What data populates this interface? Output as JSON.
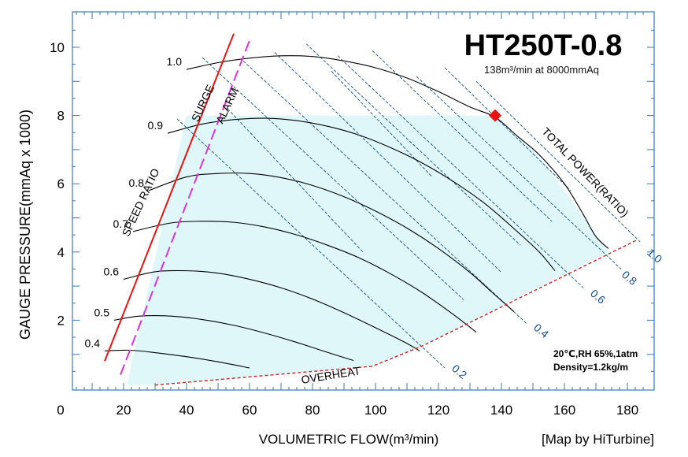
{
  "header": {
    "model": "HT250T-0.8",
    "rating": "138m³/min at 8000mmAq"
  },
  "credit": "[Map by HiTurbine]",
  "conditions": {
    "line1": "20℃,RH 65%,1atm",
    "line2": "Density=1.2kg/m"
  },
  "labels": {
    "surge": "SURGE",
    "alarm": "ALARM",
    "speed_ratio": "SPEED RATIO",
    "total_power": "TOTAL POWER(RATIO)",
    "overheat": "OVERHEAT"
  },
  "chart_data": {
    "type": "line",
    "xlabel": "VOLUMETRIC FLOW(m³/min)",
    "ylabel": "GAUGE PRESSURE(mmAq x 1000)",
    "xlim": [
      0,
      190
    ],
    "ylim": [
      0,
      11
    ],
    "xticks": [
      "0",
      "20",
      "40",
      "60",
      "80",
      "100",
      "120",
      "140",
      "160",
      "180"
    ],
    "xtick_values": [
      0,
      20,
      40,
      60,
      80,
      100,
      120,
      140,
      160,
      180
    ],
    "yticks": [
      "2",
      "4",
      "6",
      "8",
      "10"
    ],
    "ytick_values": [
      2,
      4,
      6,
      8,
      10
    ],
    "grid": false,
    "colors": {
      "speed_curve": "#000000",
      "surge": "#ee1111",
      "alarm": "#dd33dd",
      "power": "#1a4f8a",
      "overheat": "#cc2222",
      "region": "#dff7f8",
      "marker": "#ee1111"
    },
    "speed_curves": [
      {
        "name": "0.4",
        "points": [
          [
            14,
            1.1
          ],
          [
            22,
            1.12
          ],
          [
            30,
            1.05
          ],
          [
            40,
            0.93
          ],
          [
            50,
            0.78
          ],
          [
            60,
            0.6
          ]
        ]
      },
      {
        "name": "0.5",
        "points": [
          [
            17,
            2.0
          ],
          [
            25,
            2.12
          ],
          [
            35,
            2.12
          ],
          [
            45,
            2.02
          ],
          [
            55,
            1.85
          ],
          [
            65,
            1.62
          ],
          [
            75,
            1.35
          ],
          [
            85,
            1.05
          ],
          [
            93,
            0.82
          ]
        ]
      },
      {
        "name": "0.6",
        "points": [
          [
            20,
            3.2
          ],
          [
            30,
            3.42
          ],
          [
            40,
            3.45
          ],
          [
            50,
            3.38
          ],
          [
            60,
            3.2
          ],
          [
            70,
            2.95
          ],
          [
            80,
            2.62
          ],
          [
            90,
            2.22
          ],
          [
            100,
            1.78
          ],
          [
            110,
            1.32
          ],
          [
            114,
            1.1
          ]
        ]
      },
      {
        "name": "0.7",
        "points": [
          [
            23,
            4.6
          ],
          [
            35,
            4.85
          ],
          [
            45,
            4.9
          ],
          [
            55,
            4.87
          ],
          [
            65,
            4.73
          ],
          [
            75,
            4.5
          ],
          [
            85,
            4.19
          ],
          [
            95,
            3.82
          ],
          [
            105,
            3.35
          ],
          [
            115,
            2.8
          ],
          [
            125,
            2.15
          ],
          [
            132,
            1.65
          ]
        ]
      },
      {
        "name": "0.8",
        "points": [
          [
            28,
            5.8
          ],
          [
            40,
            6.2
          ],
          [
            50,
            6.3
          ],
          [
            60,
            6.3
          ],
          [
            70,
            6.18
          ],
          [
            80,
            5.95
          ],
          [
            90,
            5.62
          ],
          [
            100,
            5.2
          ],
          [
            110,
            4.7
          ],
          [
            120,
            4.1
          ],
          [
            130,
            3.4
          ],
          [
            137,
            2.82
          ],
          [
            144,
            2.25
          ]
        ]
      },
      {
        "name": "0.9",
        "points": [
          [
            34,
            7.48
          ],
          [
            45,
            7.75
          ],
          [
            55,
            7.88
          ],
          [
            65,
            7.92
          ],
          [
            75,
            7.85
          ],
          [
            85,
            7.68
          ],
          [
            95,
            7.42
          ],
          [
            105,
            7.05
          ],
          [
            115,
            6.6
          ],
          [
            125,
            6.05
          ],
          [
            135,
            5.4
          ],
          [
            145,
            4.6
          ],
          [
            152,
            4.0
          ],
          [
            157,
            3.45
          ]
        ]
      },
      {
        "name": "1.0",
        "points": [
          [
            40,
            9.35
          ],
          [
            50,
            9.55
          ],
          [
            60,
            9.68
          ],
          [
            70,
            9.75
          ],
          [
            80,
            9.73
          ],
          [
            90,
            9.6
          ],
          [
            100,
            9.4
          ],
          [
            110,
            9.1
          ],
          [
            120,
            8.7
          ],
          [
            130,
            8.25
          ],
          [
            138,
            7.95
          ],
          [
            145,
            7.4
          ],
          [
            152,
            6.85
          ],
          [
            160,
            6.0
          ],
          [
            166,
            5.1
          ],
          [
            170,
            4.45
          ],
          [
            174,
            4.1
          ]
        ]
      }
    ],
    "surge_line": [
      [
        14,
        0.8
      ],
      [
        55,
        10.4
      ]
    ],
    "alarm_line": [
      [
        19,
        0.4
      ],
      [
        60,
        10.2
      ]
    ],
    "overheat_line": [
      [
        30,
        0.1
      ],
      [
        99,
        0.65
      ],
      [
        115,
        1.25
      ],
      [
        183,
        4.35
      ]
    ],
    "region": [
      [
        21,
        0.1
      ],
      [
        31,
        0.1
      ],
      [
        99,
        0.65
      ],
      [
        115,
        1.25
      ],
      [
        174,
        4.0
      ],
      [
        152,
        6.8
      ],
      [
        138,
        8.0
      ],
      [
        40,
        8.0
      ]
    ],
    "power_lines": [
      {
        "name": "0.2",
        "points": [
          [
            37,
            7.9
          ],
          [
            122,
            0.6
          ]
        ],
        "label_at": [
          124,
          0.55
        ]
      },
      {
        "name": "0.4",
        "points": [
          [
            58,
            9.6
          ],
          [
            148,
            1.9
          ]
        ],
        "label_at": [
          150,
          1.75
        ]
      },
      {
        "name": "0.6",
        "points": [
          [
            88,
            9.75
          ],
          [
            166,
            2.95
          ]
        ],
        "label_at": [
          168,
          2.75
        ]
      },
      {
        "name": "0.8",
        "points": [
          [
            113,
            9.15
          ],
          [
            178,
            3.5
          ]
        ],
        "label_at": [
          178,
          3.3
        ]
      },
      {
        "name": "1.0",
        "points": [
          [
            132,
            9.0
          ],
          [
            184,
            4.3
          ]
        ],
        "label_at": [
          186,
          3.95
        ]
      },
      {
        "name": "",
        "points": [
          [
            45,
            9.7
          ],
          [
            128,
            2.6
          ]
        ]
      },
      {
        "name": "",
        "points": [
          [
            68,
            9.85
          ],
          [
            140,
            3.4
          ]
        ]
      },
      {
        "name": "",
        "points": [
          [
            78,
            10.1
          ],
          [
            146,
            4.2
          ]
        ]
      },
      {
        "name": "",
        "points": [
          [
            99,
            9.9
          ],
          [
            156,
            4.9
          ]
        ]
      },
      {
        "name": "",
        "points": [
          [
            122,
            9.4
          ],
          [
            162,
            5.8
          ]
        ]
      },
      {
        "name": "",
        "points": [
          [
            86,
            9.3
          ],
          [
            118,
            6.2
          ]
        ]
      },
      {
        "name": "",
        "points": [
          [
            53,
            8.2
          ],
          [
            96,
            4.0
          ]
        ]
      }
    ],
    "design_point": {
      "x": 138,
      "y": 8.0
    }
  }
}
